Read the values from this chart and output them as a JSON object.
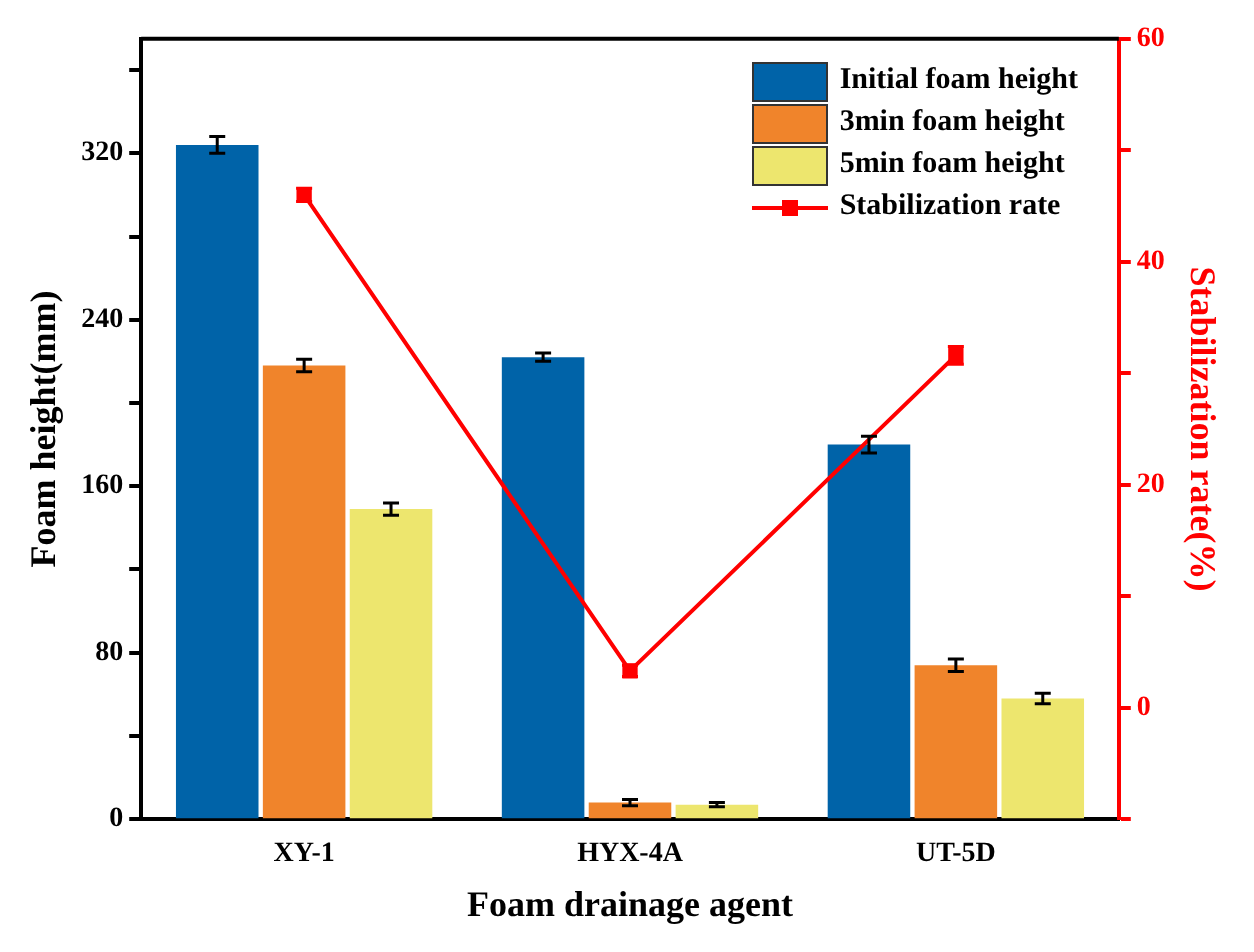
{
  "chart_data": {
    "type": "bar",
    "xlabel": "Foam drainage agent",
    "ylabel": "Foam height(mm)",
    "y2label": "Stabilization rate(%)",
    "categories": [
      "XY-1",
      "HYX-4A",
      "UT-5D"
    ],
    "series": [
      {
        "name": "Initial foam height",
        "color": "#0063a8",
        "values": [
          324,
          222,
          180
        ],
        "errors": [
          4,
          2,
          4
        ]
      },
      {
        "name": "3min foam height",
        "color": "#f0842b",
        "values": [
          218,
          8,
          74
        ],
        "errors": [
          3,
          1.5,
          3
        ]
      },
      {
        "name": "5min foam height",
        "color": "#ede66e",
        "values": [
          149,
          7,
          58
        ],
        "errors": [
          3,
          1,
          2.5
        ]
      },
      {
        "name": "Stabilization rate",
        "type": "line",
        "axis": "y2",
        "color": "#ff0000",
        "values": [
          46,
          3.3,
          31.6
        ],
        "errors": [
          0.6,
          0.5,
          0.8
        ],
        "marker": "square"
      }
    ],
    "ylim": [
      0,
      375
    ],
    "yticks": [
      0,
      {
        "value": 40,
        "label": null
      },
      80,
      {
        "value": 120,
        "label": null
      },
      160,
      {
        "value": 200,
        "label": null
      },
      240,
      {
        "value": 280,
        "label": null
      },
      320,
      {
        "value": 360,
        "label": null
      }
    ],
    "y2lim": [
      -10,
      60
    ],
    "y2ticks": [
      {
        "value": -10,
        "label": null
      },
      0,
      {
        "value": 10,
        "label": null
      },
      20,
      {
        "value": 30,
        "label": null
      },
      40,
      {
        "value": 50,
        "label": null
      },
      60
    ],
    "grid": false,
    "legend": "top right"
  }
}
